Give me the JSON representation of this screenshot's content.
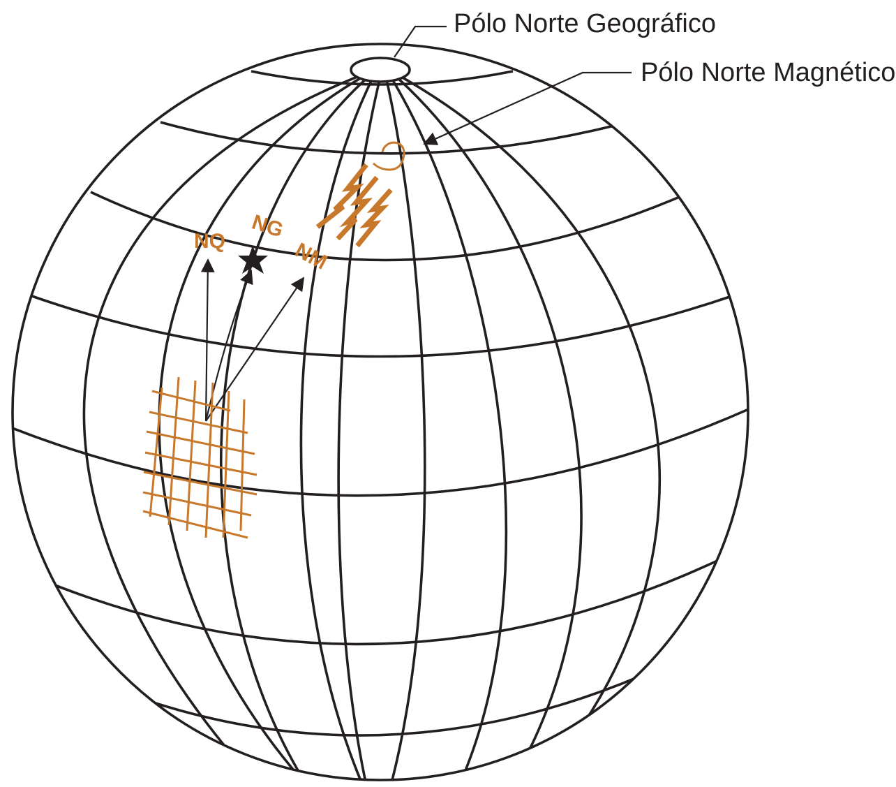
{
  "labels": {
    "geographic_pole": "Pólo Norte Geográfico",
    "magnetic_pole": "Pólo Norte Magnético",
    "nq": "NQ",
    "ng": "NG",
    "nm": "NM"
  },
  "colors": {
    "line": "#231f20",
    "accent": "#c7782a",
    "background": "#ffffff"
  },
  "icons": {
    "magnet": "horseshoe-magnet-icon",
    "field_lines": "lightning-bolt-icon",
    "geographic_north_marker": "star-icon"
  }
}
